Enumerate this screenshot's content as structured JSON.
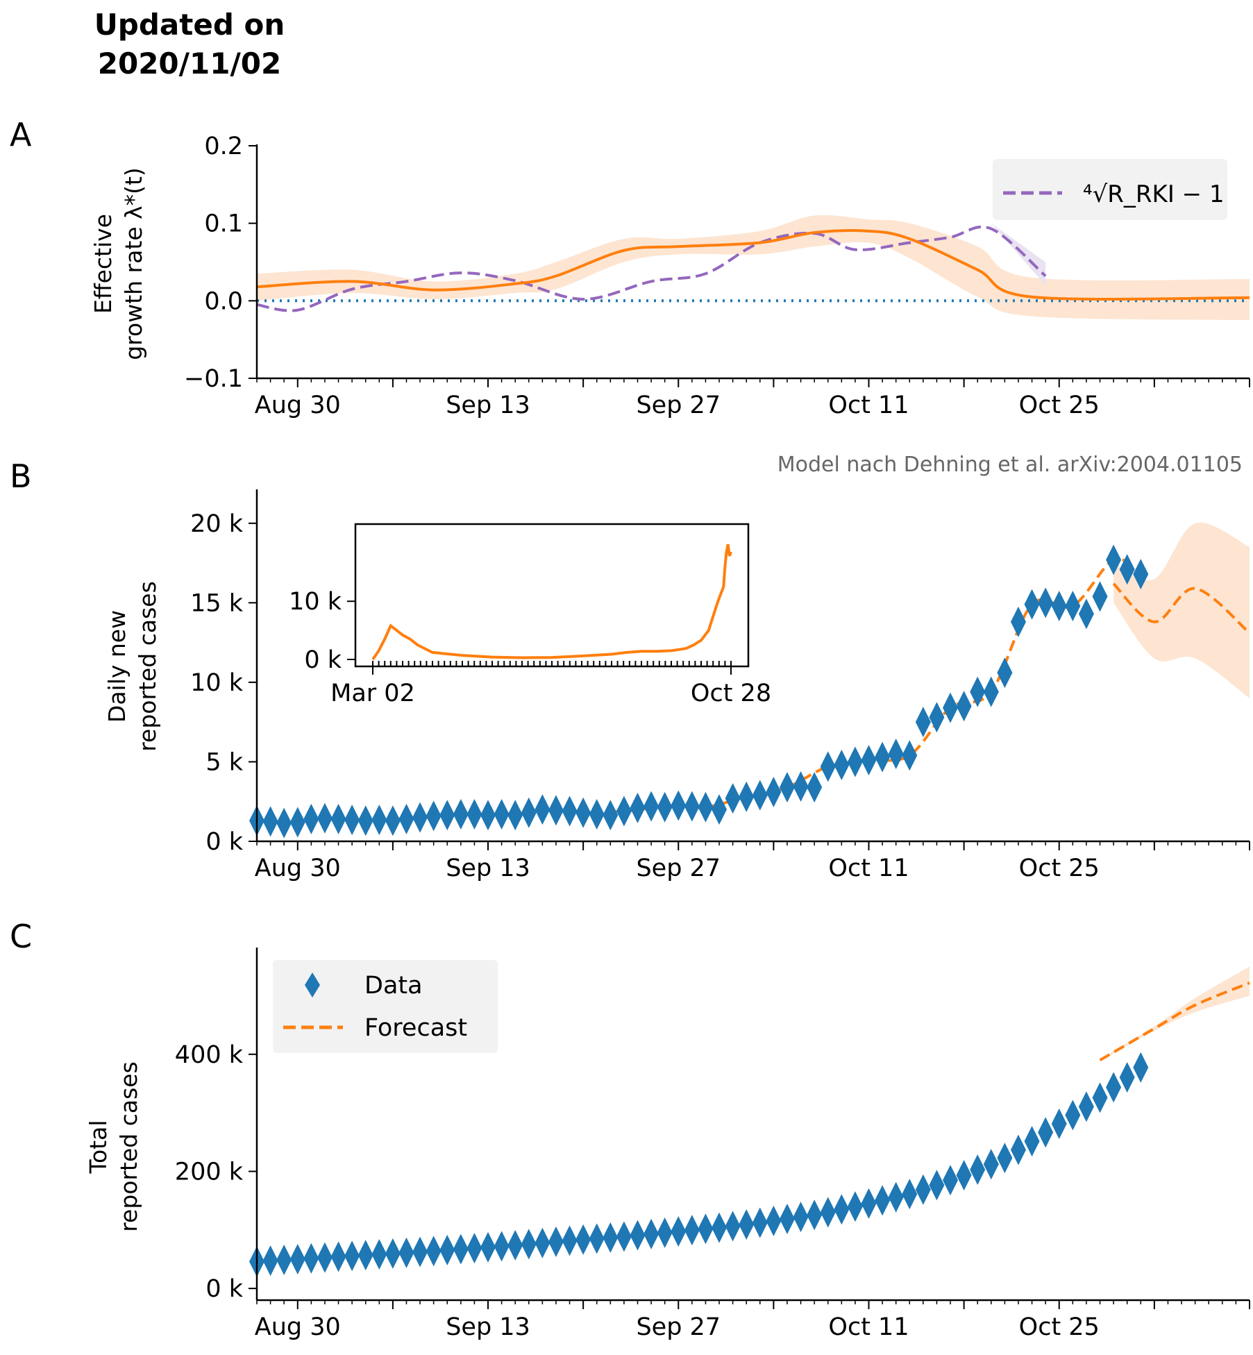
{
  "header": {
    "title_line1": "Updated on",
    "title_line2": "2020/11/02"
  },
  "source_note": "Model nach Dehning et al. arXiv:2004.01105",
  "colors": {
    "model": "#ff7f0e",
    "data": "#1f77b4",
    "rki": "#9467bd",
    "band": "#fde5d2",
    "rki_band": "#e8e2f1",
    "zero_line": "#1f77b4"
  },
  "x_axis": {
    "start_date": "Aug 27",
    "end_date": "Nov 08",
    "tick_labels": [
      "Aug 30",
      "Sep 13",
      "Sep 27",
      "Oct 11",
      "Oct 25"
    ]
  },
  "chart_data": [
    {
      "panel_label": "A",
      "type": "line",
      "ylabel_line1": "Effective",
      "ylabel_line2": "growth rate λ*(t)",
      "ylim": [
        -0.1,
        0.2
      ],
      "yticks": [
        "−0.1",
        "0.0",
        "0.1",
        "0.2"
      ],
      "legend": {
        "label": "⁴√R_RKI − 1",
        "placement": "top-right"
      },
      "series": [
        {
          "name": "model",
          "style": "solid",
          "x": [
            "Aug 27",
            "Sep 3",
            "Sep 9",
            "Sep 15",
            "Sep 18",
            "Sep 23",
            "Sep 27",
            "Oct 3",
            "Oct 7",
            "Oct 11",
            "Oct 14",
            "Oct 19",
            "Oct 23",
            "Nov 8"
          ],
          "y": [
            0.018,
            0.025,
            0.014,
            0.022,
            0.032,
            0.065,
            0.07,
            0.075,
            0.088,
            0.09,
            0.08,
            0.04,
            0.005,
            0.004
          ],
          "band_low": [
            0.0,
            0.01,
            0.002,
            0.01,
            0.015,
            0.05,
            0.06,
            0.06,
            0.07,
            0.075,
            0.055,
            0.005,
            -0.02,
            -0.025
          ],
          "band_high": [
            0.035,
            0.04,
            0.025,
            0.035,
            0.05,
            0.08,
            0.08,
            0.09,
            0.11,
            0.105,
            0.1,
            0.07,
            0.03,
            0.028
          ]
        },
        {
          "name": "rki",
          "style": "dashed",
          "x": [
            "Aug 27",
            "Aug 30",
            "Sep 3",
            "Sep 7",
            "Sep 11",
            "Sep 15",
            "Sep 20",
            "Sep 25",
            "Sep 29",
            "Oct 3",
            "Oct 7",
            "Oct 10",
            "Oct 14",
            "Oct 17",
            "Oct 20",
            "Oct 24"
          ],
          "y": [
            -0.005,
            -0.012,
            0.015,
            0.025,
            0.036,
            0.026,
            0.002,
            0.025,
            0.035,
            0.075,
            0.087,
            0.066,
            0.075,
            0.082,
            0.093,
            0.032
          ],
          "band_low": [
            null,
            null,
            null,
            null,
            null,
            null,
            null,
            null,
            null,
            null,
            null,
            null,
            null,
            null,
            0.085,
            0.02
          ],
          "band_high": [
            null,
            null,
            null,
            null,
            null,
            null,
            null,
            null,
            null,
            null,
            null,
            null,
            null,
            null,
            0.1,
            0.05
          ]
        },
        {
          "name": "zero",
          "style": "dotted",
          "x": [
            "Aug 27",
            "Nov 8"
          ],
          "y": [
            0,
            0
          ]
        }
      ]
    },
    {
      "panel_label": "B",
      "type": "scatter",
      "ylabel_line1": "Daily new",
      "ylabel_line2": "reported cases",
      "ylim": [
        0,
        22000
      ],
      "yticks": [
        "0 k",
        "5 k",
        "10 k",
        "15 k",
        "20 k"
      ],
      "data_start": "Aug 27",
      "data": [
        1300,
        1250,
        1150,
        1200,
        1400,
        1450,
        1400,
        1350,
        1300,
        1350,
        1300,
        1400,
        1500,
        1600,
        1650,
        1700,
        1700,
        1650,
        1700,
        1650,
        1800,
        2000,
        1950,
        1900,
        1800,
        1700,
        1650,
        1900,
        2100,
        2200,
        2150,
        2250,
        2200,
        2150,
        2000,
        2700,
        2800,
        2900,
        3100,
        3400,
        3450,
        3400,
        4700,
        4800,
        5000,
        5100,
        5300,
        5500,
        5400,
        7500,
        7800,
        8400,
        8500,
        9400,
        9400,
        10600,
        13800,
        14900,
        15000,
        14800,
        14800,
        14300,
        15400,
        17700,
        17100,
        16800
      ],
      "forecast": {
        "x": [
          "Oct 29",
          "Nov 1",
          "Nov 4",
          "Nov 8"
        ],
        "y": [
          16200,
          13800,
          15900,
          13100
        ],
        "band_low": [
          15000,
          11500,
          11500,
          9000
        ],
        "band_high": [
          17500,
          16500,
          20000,
          18500
        ]
      },
      "inset": {
        "type": "line",
        "x_tick_labels": [
          "Mar 02",
          "Oct 28"
        ],
        "ylim": [
          0,
          18500
        ],
        "yticks": [
          "0 k",
          "10 k"
        ],
        "x_days": [
          0,
          4,
          8,
          12,
          16,
          20,
          25,
          30,
          40,
          60,
          80,
          100,
          120,
          140,
          160,
          170,
          180,
          190,
          200,
          205,
          210,
          215,
          220,
          225,
          230,
          232,
          235,
          236,
          237,
          238,
          239,
          240
        ],
        "y": [
          0,
          1500,
          3500,
          5800,
          5000,
          4200,
          3500,
          2500,
          1200,
          700,
          400,
          300,
          350,
          600,
          900,
          1200,
          1400,
          1400,
          1500,
          1700,
          1900,
          2500,
          3300,
          5000,
          9000,
          10500,
          12500,
          16000,
          18500,
          19800,
          17800,
          18500
        ]
      }
    },
    {
      "panel_label": "C",
      "type": "scatter",
      "ylabel_line1": "Total",
      "ylabel_line2": "reported cases",
      "ylim": [
        -20000,
        580000
      ],
      "yticks": [
        "0 k",
        "200 k",
        "400 k"
      ],
      "legend": {
        "data_label": "Data",
        "forecast_label": "Forecast",
        "placement": "top-left"
      },
      "data_start": "Aug 27",
      "data": [
        46000,
        47500,
        48800,
        50000,
        51400,
        52800,
        54200,
        55600,
        56900,
        58200,
        59600,
        61000,
        62400,
        63900,
        65500,
        67100,
        68800,
        70400,
        72100,
        73800,
        75700,
        77700,
        79700,
        81600,
        83400,
        85100,
        86800,
        88700,
        90800,
        93000,
        95200,
        97400,
        99600,
        101800,
        103800,
        106500,
        109300,
        112200,
        115300,
        118700,
        122100,
        125500,
        130200,
        135000,
        140000,
        145100,
        150400,
        155900,
        161300,
        168800,
        176600,
        185000,
        193500,
        202900,
        212300,
        222900,
        236700,
        251600,
        266600,
        281400,
        296200,
        310500,
        325900,
        343600,
        360700,
        377500
      ],
      "forecast": {
        "x": [
          "Oct 28",
          "Nov 1",
          "Nov 4",
          "Nov 8"
        ],
        "y": [
          390000,
          444000,
          484000,
          522000
        ],
        "band_low": [
          388000,
          440000,
          472000,
          500000
        ],
        "band_high": [
          392000,
          448000,
          496000,
          550000
        ]
      }
    }
  ]
}
